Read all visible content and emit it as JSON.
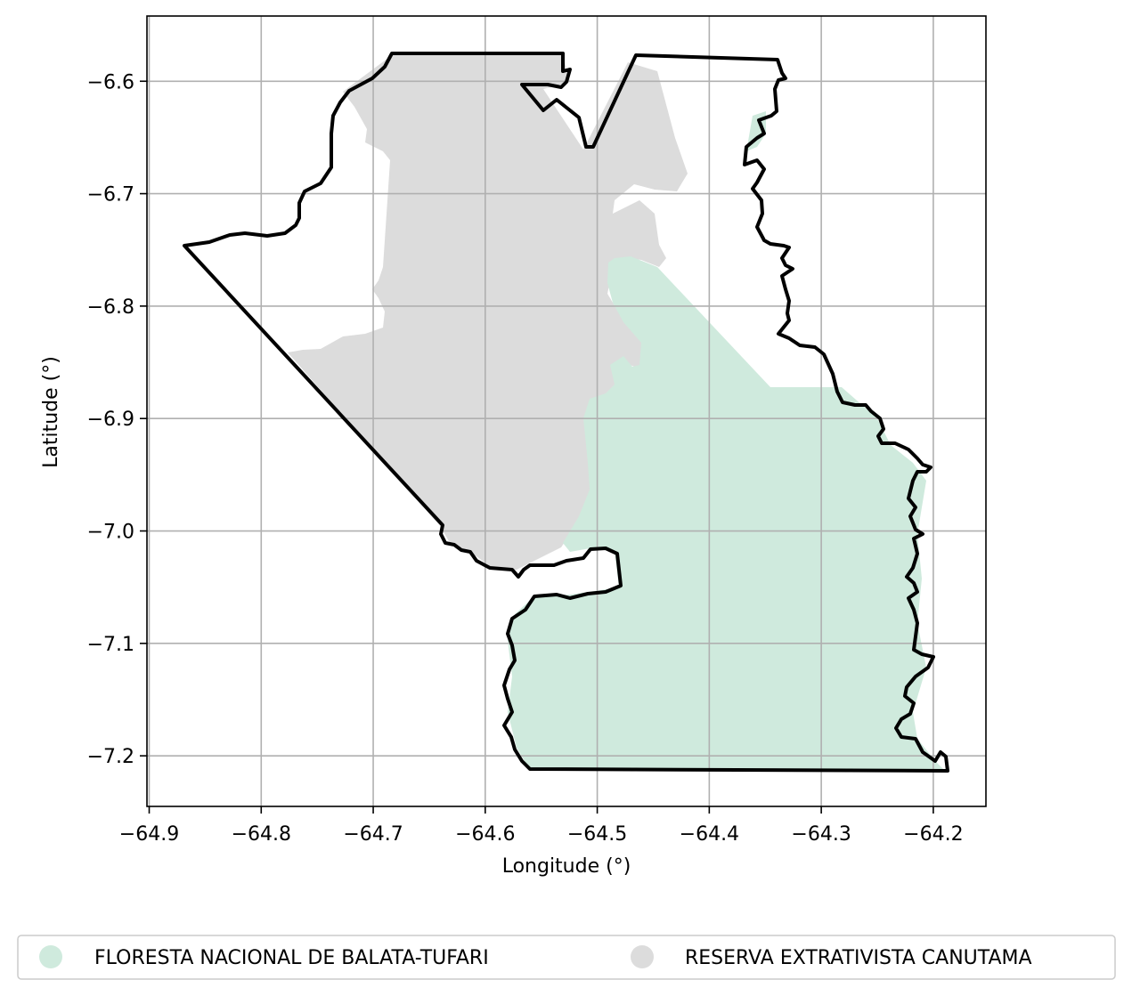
{
  "map": {
    "xlabel": "Longitude (°)",
    "ylabel": "Latitude (°)",
    "xlim": [
      -64.902,
      -64.153
    ],
    "ylim": [
      -7.245,
      -6.542
    ],
    "x_ticks": [
      "−64.9",
      "−64.8",
      "−64.7",
      "−64.6",
      "−64.5",
      "−64.4",
      "−64.3",
      "−64.2"
    ],
    "y_ticks": [
      "−6.6",
      "−6.7",
      "−6.8",
      "−6.9",
      "−7.0",
      "−7.1",
      "−7.2"
    ],
    "x_tick_values": [
      -64.9,
      -64.8,
      -64.7,
      -64.6,
      -64.5,
      -64.4,
      -64.3,
      -64.2
    ],
    "y_tick_values": [
      -6.6,
      -6.7,
      -6.8,
      -6.9,
      -7.0,
      -7.1,
      -7.2
    ],
    "grid": true,
    "colors": {
      "floresta": "#cfeadd",
      "reserva": "#dcdcdc",
      "boundary": "#000000",
      "grid": "#b0b0b0"
    }
  },
  "legend": {
    "placement": "bottom-center",
    "items": [
      {
        "label": "FLORESTA NACIONAL DE BALATA-TUFARI",
        "color": "#cfeadd"
      },
      {
        "label": "RESERVA EXTRATIVISTA CANUTAMA",
        "color": "#dcdcdc"
      }
    ]
  }
}
